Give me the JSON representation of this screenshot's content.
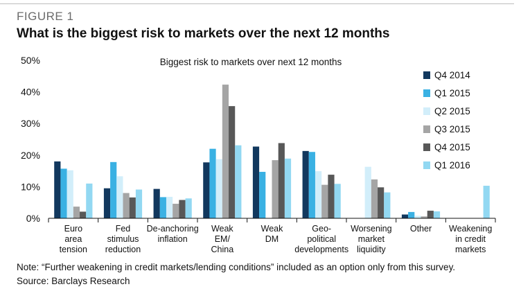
{
  "figure_label": "FIGURE 1",
  "figure_title": "What is the biggest risk to markets over the next 12 months",
  "note_line1": "Note: “Further weakening in credit markets/lending conditions” included as an option only from this survey.",
  "note_line2": "Source: Barclays Research",
  "chart_data": {
    "type": "bar",
    "title": "Biggest risk to markets over next 12 months",
    "ylim": [
      0,
      50
    ],
    "yticks": [
      "0%",
      "10%",
      "20%",
      "30%",
      "40%",
      "50%"
    ],
    "categories": [
      [
        "Euro",
        "area",
        "tension"
      ],
      [
        "Fed",
        "stimulus",
        "reduction"
      ],
      [
        "De-anchoring",
        "inflation"
      ],
      [
        "Weak",
        "EM/",
        "China"
      ],
      [
        "Weak",
        "DM"
      ],
      [
        "Geo-",
        "political",
        "developments"
      ],
      [
        "Worsening",
        "market",
        "liquidity"
      ],
      [
        "Other"
      ],
      [
        "Weakening",
        "in credit",
        "markets"
      ]
    ],
    "legend_position": "right",
    "grid": false,
    "series": [
      {
        "name": "Q4 2014",
        "color": "#12385e",
        "values": [
          18,
          9.5,
          9.3,
          17.7,
          22.7,
          21.3,
          0,
          1.2,
          0
        ]
      },
      {
        "name": "Q1 2015",
        "color": "#3ab1e3",
        "values": [
          15.7,
          17.8,
          6.7,
          22,
          14.7,
          21,
          0,
          2,
          0
        ]
      },
      {
        "name": "Q2 2015",
        "color": "#d2eefa",
        "values": [
          15.2,
          13.3,
          6.8,
          18.7,
          0,
          14.9,
          16.3,
          0.8,
          0
        ]
      },
      {
        "name": "Q3 2015",
        "color": "#a5a5a5",
        "values": [
          3.7,
          8,
          4.6,
          42.3,
          18.4,
          10.6,
          12.3,
          0.6,
          0
        ]
      },
      {
        "name": "Q4 2015",
        "color": "#585858",
        "values": [
          2.1,
          6.6,
          5.8,
          35.5,
          23.8,
          13.8,
          9.8,
          2.4,
          0
        ]
      },
      {
        "name": "Q1 2016",
        "color": "#92d8f2",
        "values": [
          11,
          9.1,
          6.3,
          23.1,
          18.9,
          10.9,
          8.2,
          2.2,
          10.3
        ]
      }
    ]
  }
}
